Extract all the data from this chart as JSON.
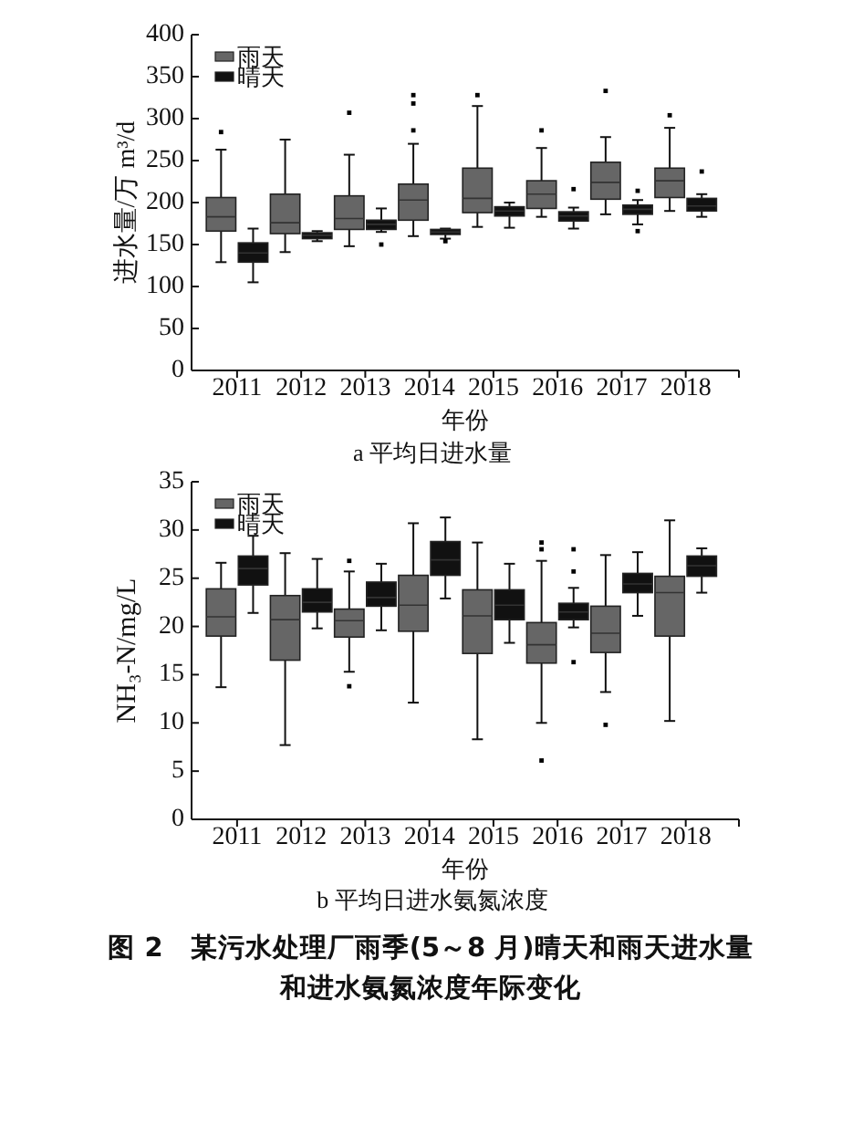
{
  "chart_data": [
    {
      "type": "box",
      "title": "a 平均日进水量",
      "xlabel": "年份",
      "ylabel": "进水量/万 m³/d",
      "categories": [
        "2011",
        "2012",
        "2013",
        "2014",
        "2015",
        "2016",
        "2017",
        "2018"
      ],
      "ylim": [
        0,
        400
      ],
      "yticks": [
        0,
        50,
        100,
        150,
        200,
        250,
        300,
        350,
        400
      ],
      "legend": "top left",
      "series": [
        {
          "name": "雨天",
          "color": "#666666",
          "boxes": [
            {
              "low": 129,
              "q1": 166,
              "median": 183,
              "q3": 206,
              "high": 263,
              "outliers": [
                284
              ]
            },
            {
              "low": 141,
              "q1": 163,
              "median": 176,
              "q3": 210,
              "high": 275
            },
            {
              "low": 148,
              "q1": 168,
              "median": 181,
              "q3": 208,
              "high": 257,
              "outliers": [
                307
              ]
            },
            {
              "low": 160,
              "q1": 179,
              "median": 203,
              "q3": 222,
              "high": 270,
              "outliers": [
                286,
                318,
                328
              ]
            },
            {
              "low": 171,
              "q1": 188,
              "median": 205,
              "q3": 241,
              "high": 315,
              "outliers": [
                328
              ]
            },
            {
              "low": 183,
              "q1": 193,
              "median": 210,
              "q3": 226,
              "high": 265,
              "outliers": [
                286
              ]
            },
            {
              "low": 186,
              "q1": 204,
              "median": 224,
              "q3": 248,
              "high": 278,
              "outliers": [
                333
              ]
            },
            {
              "low": 190,
              "q1": 206,
              "median": 226,
              "q3": 241,
              "high": 289,
              "outliers": [
                304
              ]
            }
          ]
        },
        {
          "name": "晴天",
          "color": "#111111",
          "boxes": [
            {
              "low": 105,
              "q1": 129,
              "median": 140,
              "q3": 152,
              "high": 169
            },
            {
              "low": 154,
              "q1": 157,
              "median": 161,
              "q3": 164,
              "high": 166
            },
            {
              "low": 165,
              "q1": 168,
              "median": 174,
              "q3": 179,
              "high": 193,
              "outliers": [
                150
              ]
            },
            {
              "low": 157,
              "q1": 162,
              "median": 165,
              "q3": 168,
              "high": 169,
              "outliers": [
                154
              ]
            },
            {
              "low": 170,
              "q1": 184,
              "median": 190,
              "q3": 195,
              "high": 200
            },
            {
              "low": 169,
              "q1": 178,
              "median": 184,
              "q3": 189,
              "high": 194,
              "outliers": [
                216
              ]
            },
            {
              "low": 174,
              "q1": 186,
              "median": 192,
              "q3": 197,
              "high": 203,
              "outliers": [
                214,
                166
              ]
            },
            {
              "low": 183,
              "q1": 190,
              "median": 196,
              "q3": 205,
              "high": 210,
              "outliers": [
                237
              ]
            }
          ]
        }
      ]
    },
    {
      "type": "box",
      "title": "b 平均日进水氨氮浓度",
      "xlabel": "年份",
      "ylabel": "NH₃-N/mg/L",
      "categories": [
        "2011",
        "2012",
        "2013",
        "2014",
        "2015",
        "2016",
        "2017",
        "2018"
      ],
      "ylim": [
        0,
        35
      ],
      "yticks": [
        0,
        5,
        10,
        15,
        20,
        25,
        30,
        35
      ],
      "legend": "top left",
      "annotations": [
        "图 2　某污水处理厂雨季(5～8 月)晴天和雨天进水量",
        "和进水氨氮浓度年际变化"
      ],
      "series": [
        {
          "name": "雨天",
          "color": "#666666",
          "boxes": [
            {
              "low": 13.7,
              "q1": 19.0,
              "median": 21.0,
              "q3": 23.9,
              "high": 26.6
            },
            {
              "low": 7.7,
              "q1": 16.5,
              "median": 20.7,
              "q3": 23.2,
              "high": 27.6
            },
            {
              "low": 15.3,
              "q1": 18.9,
              "median": 20.6,
              "q3": 21.8,
              "high": 25.7,
              "outliers": [
                26.8,
                13.8
              ]
            },
            {
              "low": 12.1,
              "q1": 19.5,
              "median": 22.2,
              "q3": 25.3,
              "high": 30.7
            },
            {
              "low": 8.3,
              "q1": 17.2,
              "median": 21.1,
              "q3": 23.8,
              "high": 28.7
            },
            {
              "low": 10.0,
              "q1": 16.2,
              "median": 18.1,
              "q3": 20.4,
              "high": 26.8,
              "outliers": [
                28.7,
                28.0,
                6.1
              ]
            },
            {
              "low": 13.2,
              "q1": 17.3,
              "median": 19.3,
              "q3": 22.1,
              "high": 27.4,
              "outliers": [
                9.8
              ]
            },
            {
              "low": 10.2,
              "q1": 19.0,
              "median": 23.5,
              "q3": 25.2,
              "high": 31.0
            }
          ]
        },
        {
          "name": "晴天",
          "color": "#111111",
          "boxes": [
            {
              "low": 21.4,
              "q1": 24.3,
              "median": 26.0,
              "q3": 27.3,
              "high": 29.4
            },
            {
              "low": 19.8,
              "q1": 21.5,
              "median": 22.5,
              "q3": 23.9,
              "high": 27.0
            },
            {
              "low": 19.6,
              "q1": 22.1,
              "median": 23.0,
              "q3": 24.6,
              "high": 26.5
            },
            {
              "low": 22.9,
              "q1": 25.3,
              "median": 26.9,
              "q3": 28.8,
              "high": 31.3
            },
            {
              "low": 18.3,
              "q1": 20.7,
              "median": 22.2,
              "q3": 23.8,
              "high": 26.5
            },
            {
              "low": 19.9,
              "q1": 20.7,
              "median": 21.5,
              "q3": 22.4,
              "high": 24.0,
              "outliers": [
                28.0,
                25.7,
                16.3
              ]
            },
            {
              "low": 21.1,
              "q1": 23.5,
              "median": 24.4,
              "q3": 25.5,
              "high": 27.7
            },
            {
              "low": 23.5,
              "q1": 25.2,
              "median": 26.3,
              "q3": 27.3,
              "high": 28.1
            }
          ]
        }
      ]
    }
  ]
}
